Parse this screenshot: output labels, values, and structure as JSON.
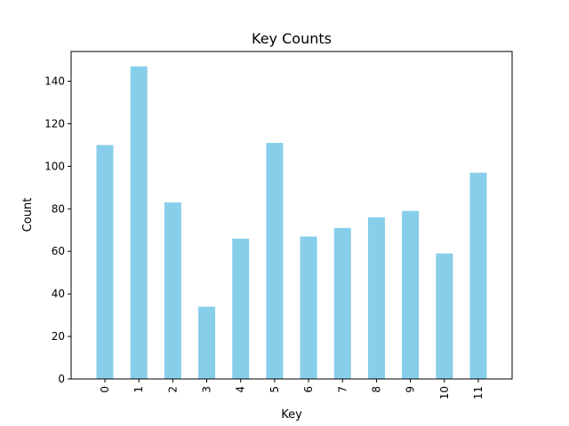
{
  "chart_data": {
    "type": "bar",
    "title": "Key Counts",
    "xlabel": "Key",
    "ylabel": "Count",
    "categories": [
      "0",
      "1",
      "2",
      "3",
      "4",
      "5",
      "6",
      "7",
      "8",
      "9",
      "10",
      "11"
    ],
    "values": [
      110,
      147,
      83,
      34,
      66,
      111,
      67,
      71,
      76,
      79,
      59,
      97
    ],
    "ylim": [
      0,
      154
    ],
    "yticks": [
      0,
      20,
      40,
      60,
      80,
      100,
      120,
      140
    ],
    "grid": false,
    "legend": "none",
    "bar_color": "#87CEEB"
  }
}
